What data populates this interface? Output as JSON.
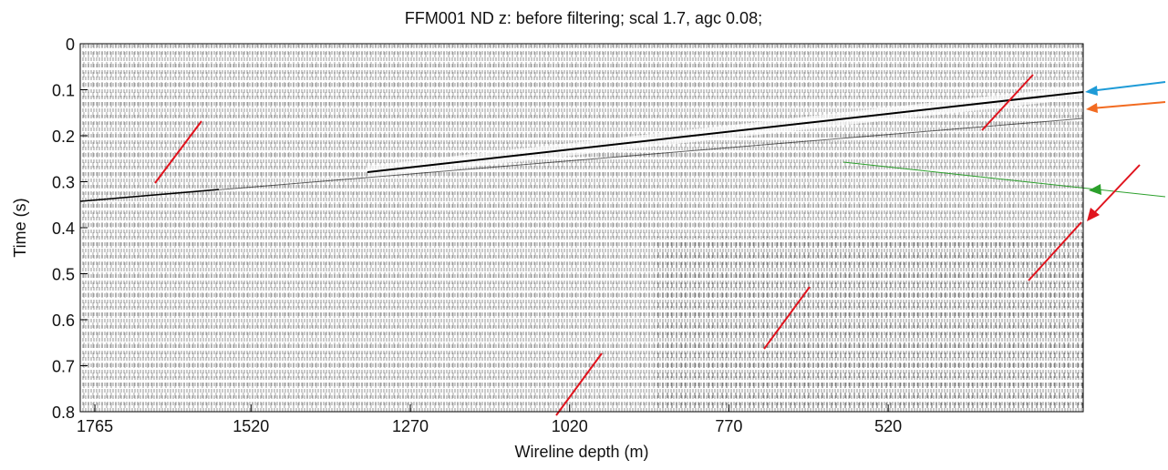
{
  "chart_data": {
    "type": "seismic",
    "title": "FFM001 ND z: before filtering; scal 1.7, agc 0.08;",
    "x_label": "Wireline depth (m)",
    "y_label": "Time (s)",
    "xlim": [
      1788,
      214
    ],
    "xticks": [
      1765,
      1520,
      1270,
      1020,
      770,
      520
    ],
    "ylim": [
      0,
      0.8
    ],
    "yticks": [
      0,
      0.1,
      0.2,
      0.3,
      0.4,
      0.5,
      0.6,
      0.7,
      0.8
    ]
  }
}
